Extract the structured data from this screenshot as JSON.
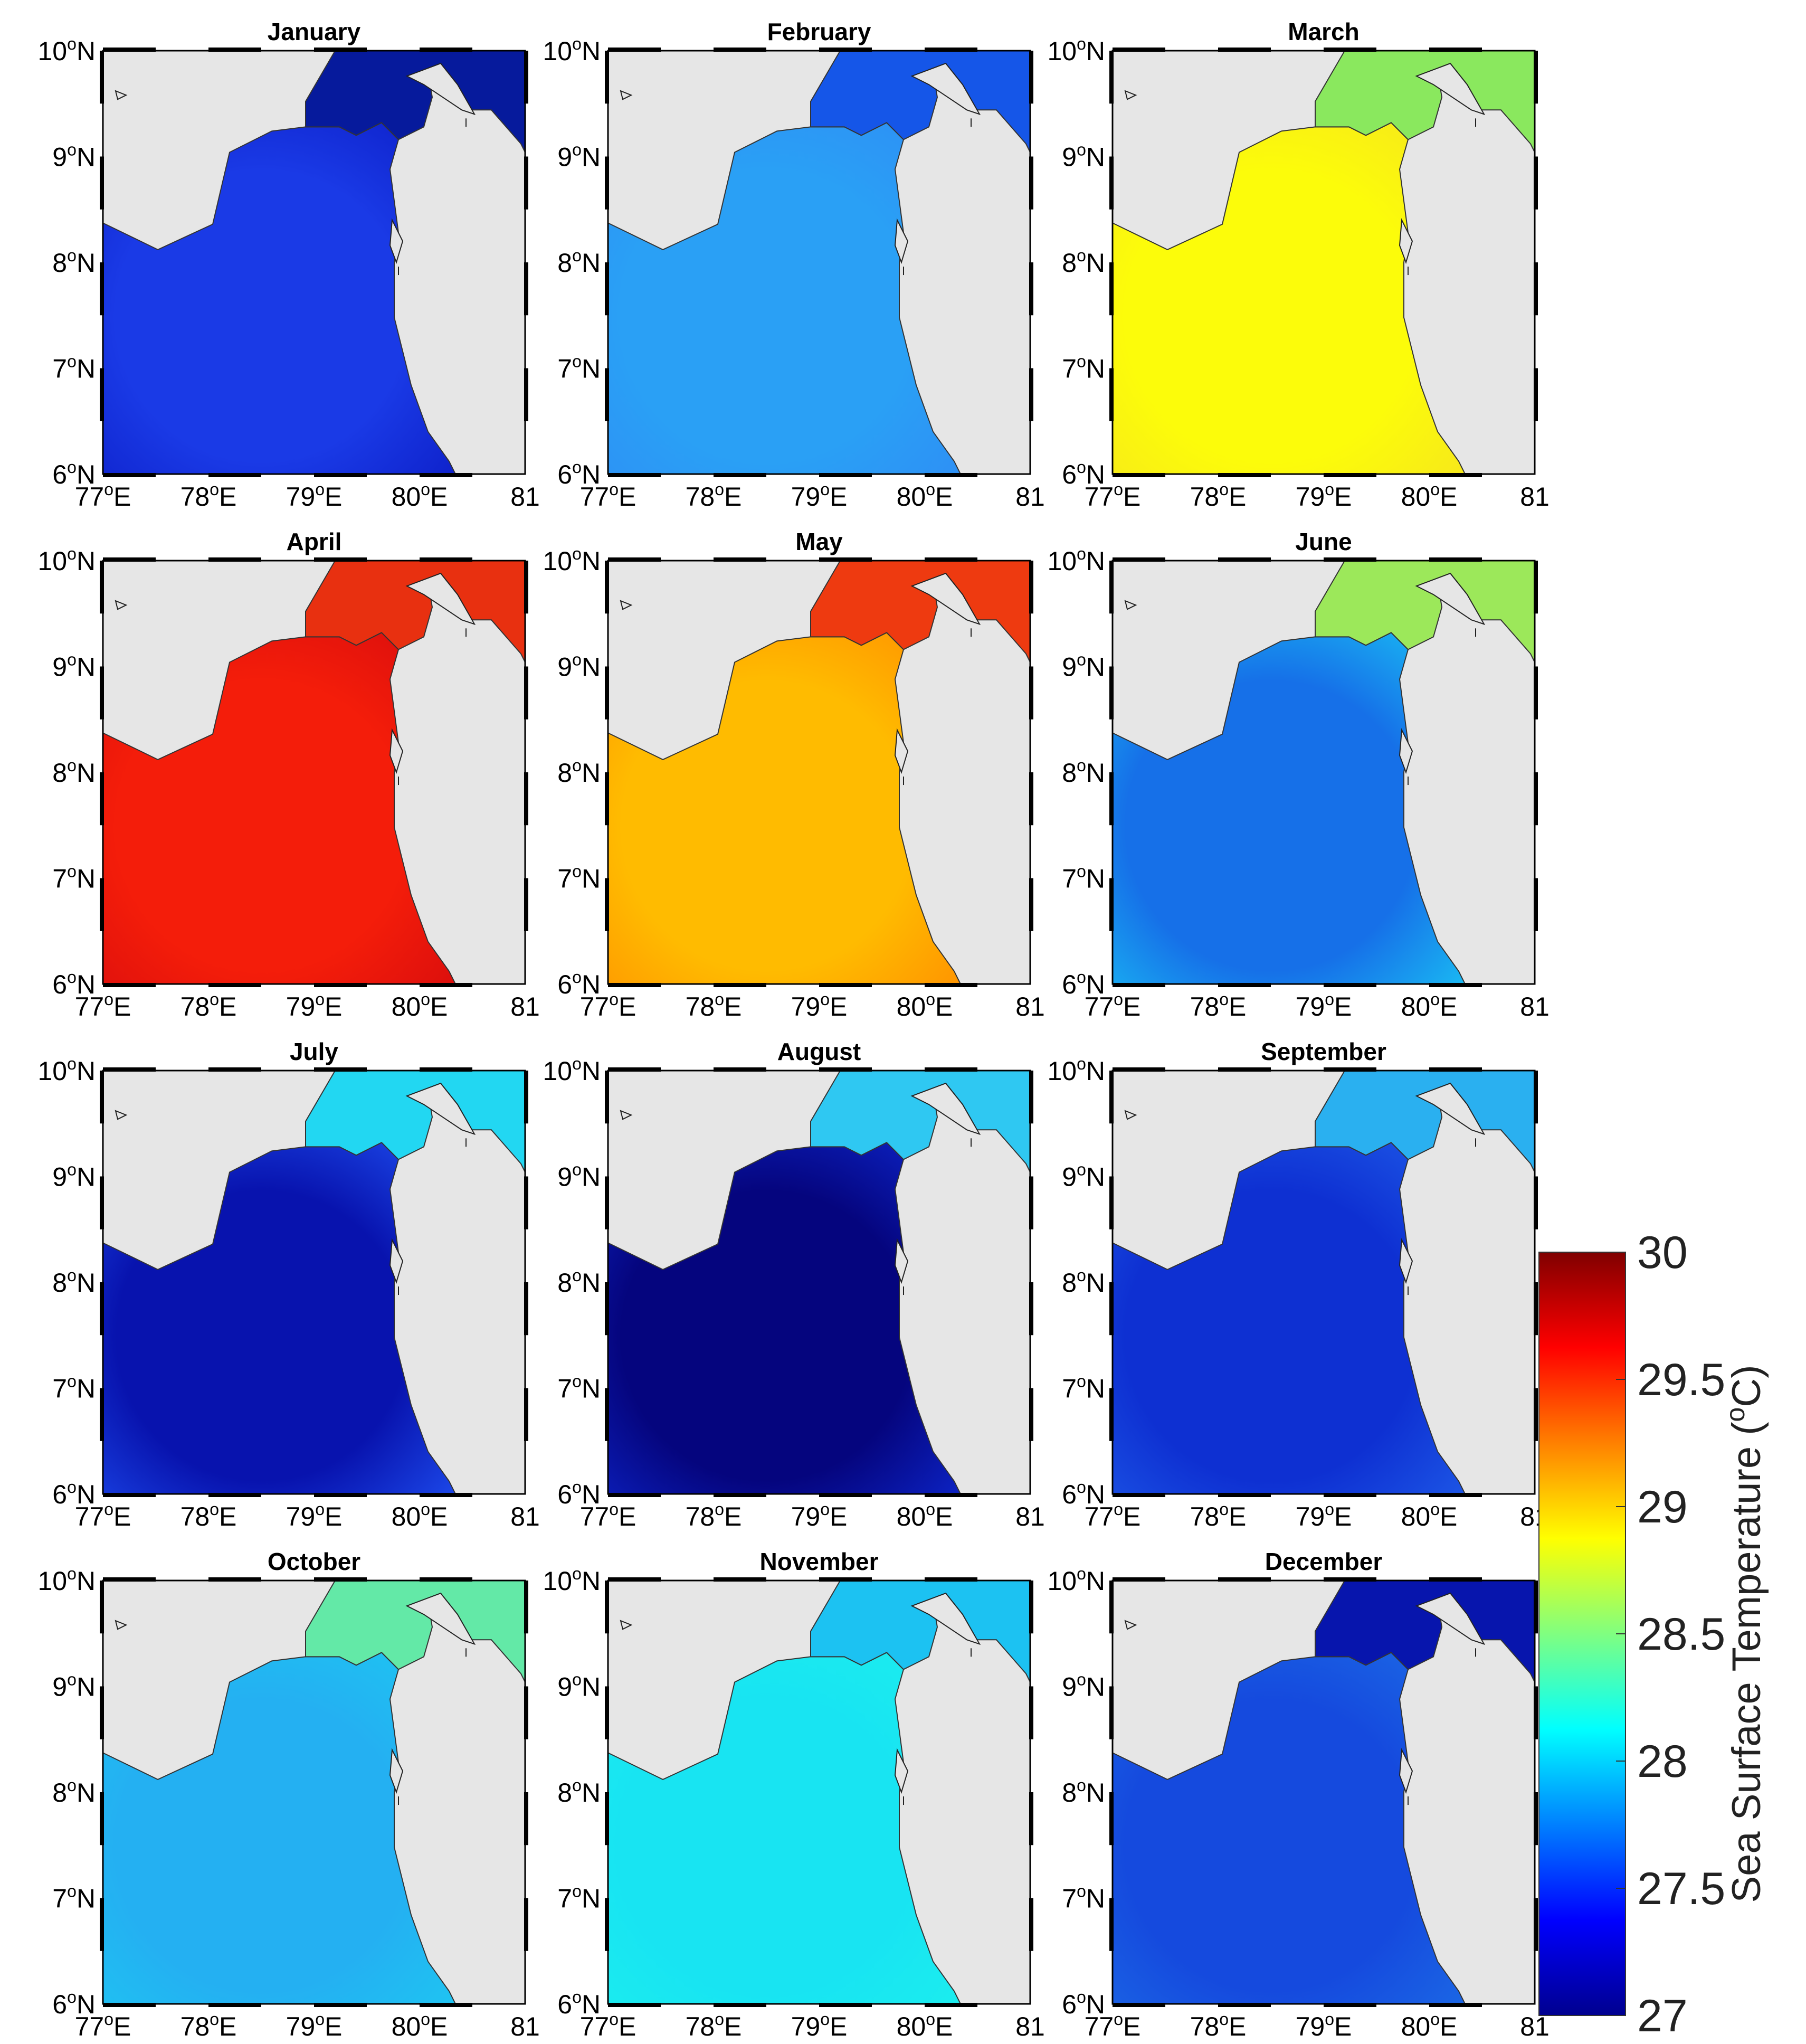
{
  "figure": {
    "panels": [
      {
        "month": "January",
        "colors": {
          "outer": "#0d1fc8",
          "inner": "#1a3ae6",
          "north": "#061a9c"
        }
      },
      {
        "month": "February",
        "colors": {
          "outer": "#2e8ef5",
          "inner": "#2aa0f5",
          "north": "#1556e8"
        }
      },
      {
        "month": "March",
        "colors": {
          "outer": "#f6e61c",
          "inner": "#fcfc0a",
          "north": "#8ae85e"
        }
      },
      {
        "month": "April",
        "colors": {
          "outer": "#d90d0d",
          "inner": "#f41d0a",
          "north": "#e83010"
        }
      },
      {
        "month": "May",
        "colors": {
          "outer": "#ff9000",
          "inner": "#ffbb00",
          "north": "#ee3a10"
        }
      },
      {
        "month": "June",
        "colors": {
          "outer": "#1ac2f4",
          "inner": "#1670e8",
          "north": "#9ce85a"
        }
      },
      {
        "month": "July",
        "colors": {
          "outer": "#1e4ef0",
          "inner": "#0813ae",
          "north": "#22d7f2"
        }
      },
      {
        "month": "August",
        "colors": {
          "outer": "#0d26cc",
          "inner": "#05057e",
          "north": "#2fc8f2"
        }
      },
      {
        "month": "September",
        "colors": {
          "outer": "#1e5ae8",
          "inner": "#0e30d2",
          "north": "#2ab0f0"
        }
      },
      {
        "month": "October",
        "colors": {
          "outer": "#1ec6f2",
          "inner": "#24b0f2",
          "north": "#63e9a7"
        }
      },
      {
        "month": "November",
        "colors": {
          "outer": "#1ceeee",
          "inner": "#18e4f2",
          "north": "#1cc2f2"
        }
      },
      {
        "month": "December",
        "colors": {
          "outer": "#1c6ae6",
          "inner": "#154ade",
          "north": "#0715ad"
        }
      }
    ],
    "x_ticks": [
      {
        "value": "77",
        "suffix": "E"
      },
      {
        "value": "78",
        "suffix": "E"
      },
      {
        "value": "79",
        "suffix": "E"
      },
      {
        "value": "80",
        "suffix": "E"
      },
      {
        "value": "81",
        "suffix": ""
      }
    ],
    "y_ticks": [
      {
        "value": "10",
        "suffix": "N"
      },
      {
        "value": "9",
        "suffix": "N"
      },
      {
        "value": "8",
        "suffix": "N"
      },
      {
        "value": "7",
        "suffix": "N"
      },
      {
        "value": "6",
        "suffix": "N"
      }
    ],
    "degree_symbol": "o",
    "land_color": "#e6e6e6",
    "colorbar": {
      "title_main": "Sea Surface Temperature (",
      "title_sup": "o",
      "title_end": "C)",
      "ticks": [
        "30",
        "29.5",
        "29",
        "28.5",
        "28",
        "27.5",
        "27"
      ],
      "min": 27,
      "max": 30,
      "colormap": [
        "#00008f",
        "#0000ff",
        "#0080ff",
        "#00ffff",
        "#80ff80",
        "#ffff00",
        "#ff8000",
        "#ff0000",
        "#800000"
      ]
    }
  }
}
